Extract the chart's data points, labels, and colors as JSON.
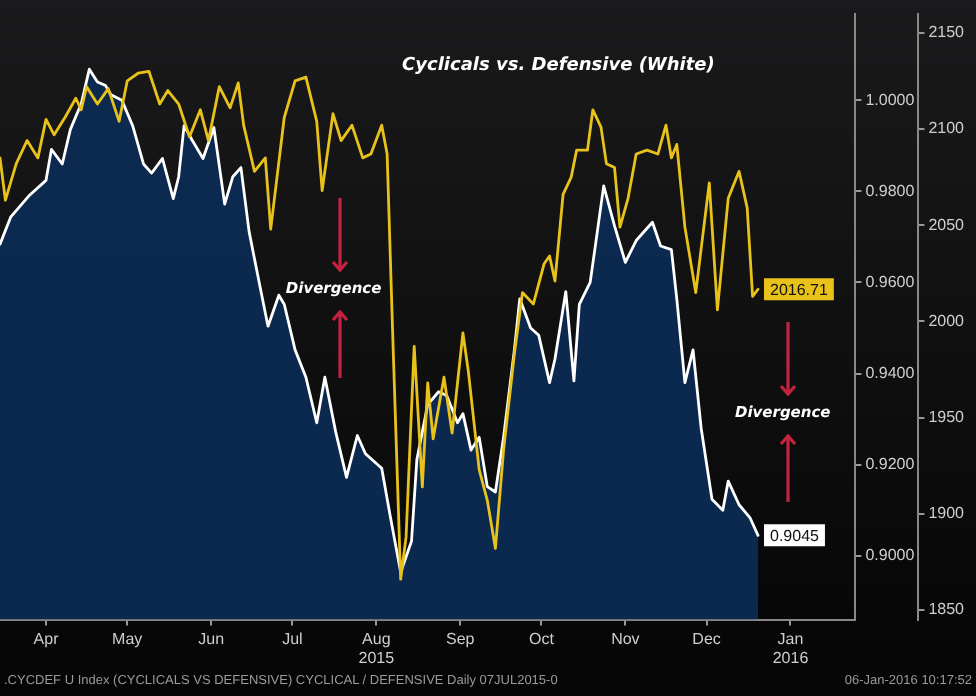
{
  "chart_data": {
    "type": "area",
    "title": "Cyclicals vs. Defensive (White)",
    "xlim": [
      "2015-03-29",
      "2016-02-08"
    ],
    "xticks": [
      {
        "value": "2015-04-15",
        "label": "Apr"
      },
      {
        "value": "2015-05-15",
        "label": "May"
      },
      {
        "value": "2015-06-15",
        "label": "Jun"
      },
      {
        "value": "2015-07-15",
        "label": "Jul"
      },
      {
        "value": "2015-08-15",
        "label": "Aug\n2015"
      },
      {
        "value": "2015-09-15",
        "label": "Sep"
      },
      {
        "value": "2015-10-15",
        "label": "Oct"
      },
      {
        "value": "2015-11-15",
        "label": "Nov"
      },
      {
        "value": "2015-12-15",
        "label": "Dec"
      },
      {
        "value": "2016-01-15",
        "label": "Jan\n2016"
      }
    ],
    "ylim": [
      0.886,
      1.019
    ],
    "yticks": [
      {
        "value": 0.9,
        "label": "0.9000"
      },
      {
        "value": 0.92,
        "label": "0.9200"
      },
      {
        "value": 0.94,
        "label": "0.9400"
      },
      {
        "value": 0.96,
        "label": "0.9600"
      },
      {
        "value": 0.98,
        "label": "0.9800"
      },
      {
        "value": 1.0,
        "label": "1.0000"
      }
    ],
    "y2lim": [
      1845,
      2160
    ],
    "y2ticks": [
      1850,
      1900,
      1950,
      2000,
      2050,
      2100,
      2150
    ],
    "grid": false,
    "legend": false,
    "series": [
      {
        "type": "area",
        "color": "#ffffff",
        "x": [
          "2015-03-29",
          "2015-04-02",
          "2015-04-09",
          "2015-04-15",
          "2015-04-17",
          "2015-04-21",
          "2015-04-24",
          "2015-04-28",
          "2015-05-01",
          "2015-05-04",
          "2015-05-07",
          "2015-05-09",
          "2015-05-13",
          "2015-05-17",
          "2015-05-21",
          "2015-05-24",
          "2015-05-28",
          "2015-06-01",
          "2015-06-03",
          "2015-06-05",
          "2015-06-08",
          "2015-06-12",
          "2015-06-16",
          "2015-06-20",
          "2015-06-23",
          "2015-06-26",
          "2015-06-29",
          "2015-07-03",
          "2015-07-06",
          "2015-07-10",
          "2015-07-12",
          "2015-07-16",
          "2015-07-20",
          "2015-07-24",
          "2015-07-27",
          "2015-07-31",
          "2015-08-04",
          "2015-08-08",
          "2015-08-11",
          "2015-08-17",
          "2015-08-20",
          "2015-08-24",
          "2015-08-28",
          "2015-08-30",
          "2015-09-03",
          "2015-09-07",
          "2015-09-10",
          "2015-09-14",
          "2015-09-16",
          "2015-09-19",
          "2015-09-22",
          "2015-09-25",
          "2015-09-28",
          "2015-10-01",
          "2015-10-05",
          "2015-10-07",
          "2015-10-11",
          "2015-10-14",
          "2015-10-18",
          "2015-10-20",
          "2015-10-24",
          "2015-10-27",
          "2015-10-29",
          "2015-11-02",
          "2015-11-04",
          "2015-11-07",
          "2015-11-11",
          "2015-11-15",
          "2015-11-19",
          "2015-11-25",
          "2015-11-28",
          "2015-12-02",
          "2015-12-04",
          "2015-12-07",
          "2015-12-10",
          "2015-12-13",
          "2015-12-17",
          "2015-12-21",
          "2015-12-23",
          "2015-12-27",
          "2015-12-31",
          "2016-01-03"
        ],
        "values": [
          0.9684,
          0.9744,
          0.9792,
          0.9824,
          0.9892,
          0.986,
          0.9936,
          0.9992,
          1.0068,
          1.004,
          1.0032,
          1.0012,
          1.0,
          0.9944,
          0.986,
          0.984,
          0.9872,
          0.9784,
          0.9832,
          0.9944,
          0.9912,
          0.9872,
          0.994,
          0.9772,
          0.9832,
          0.9852,
          0.9712,
          0.9592,
          0.9504,
          0.9572,
          0.9552,
          0.9452,
          0.9392,
          0.9292,
          0.9392,
          0.9272,
          0.9172,
          0.9264,
          0.9224,
          0.9192,
          0.9092,
          0.8964,
          0.9032,
          0.9212,
          0.9332,
          0.936,
          0.9352,
          0.9292,
          0.9312,
          0.9232,
          0.926,
          0.9152,
          0.914,
          0.926,
          0.9452,
          0.9564,
          0.95,
          0.9484,
          0.938,
          0.9432,
          0.958,
          0.9384,
          0.9552,
          0.96,
          0.9684,
          0.9812,
          0.9724,
          0.9644,
          0.9692,
          0.9732,
          0.968,
          0.9672,
          0.9564,
          0.938,
          0.9452,
          0.928,
          0.9124,
          0.91,
          0.9164,
          0.9112,
          0.9084,
          0.9045
        ],
        "value_labels": [
          null,
          null,
          null,
          null,
          null,
          null,
          null,
          null,
          null,
          null,
          null,
          null,
          null,
          null,
          null,
          null,
          null,
          null,
          null,
          null,
          null,
          null,
          null,
          null,
          null,
          null,
          null,
          null,
          null,
          null,
          null,
          null,
          null,
          null,
          null,
          null,
          null,
          null,
          null,
          null,
          null,
          null,
          null,
          null,
          null,
          null,
          null,
          null,
          null,
          null,
          null,
          null,
          null,
          null,
          null,
          null,
          null,
          null,
          null,
          null,
          null,
          null,
          null,
          null,
          null,
          null,
          null,
          null,
          null,
          null,
          null,
          null,
          null,
          null,
          null,
          null,
          null,
          null,
          null,
          null,
          null,
          "0.9045"
        ]
      },
      {
        "type": "line",
        "color": "#e8c21a",
        "axis": "y2",
        "x": [
          "2015-03-29",
          "2015-03-31",
          "2015-04-04",
          "2015-04-08",
          "2015-04-12",
          "2015-04-15",
          "2015-04-18",
          "2015-04-22",
          "2015-04-26",
          "2015-04-28",
          "2015-04-30",
          "2015-05-04",
          "2015-05-08",
          "2015-05-12",
          "2015-05-15",
          "2015-05-19",
          "2015-05-23",
          "2015-05-27",
          "2015-05-30",
          "2015-06-03",
          "2015-06-07",
          "2015-06-11",
          "2015-06-14",
          "2015-06-18",
          "2015-06-22",
          "2015-06-25",
          "2015-06-27",
          "2015-07-01",
          "2015-07-05",
          "2015-07-07",
          "2015-07-12",
          "2015-07-16",
          "2015-07-20",
          "2015-07-24",
          "2015-07-26",
          "2015-07-30",
          "2015-08-02",
          "2015-08-06",
          "2015-08-10",
          "2015-08-13",
          "2015-08-17",
          "2015-08-19",
          "2015-08-21",
          "2015-08-24",
          "2015-08-26",
          "2015-08-29",
          "2015-09-01",
          "2015-09-03",
          "2015-09-05",
          "2015-09-09",
          "2015-09-12",
          "2015-09-16",
          "2015-09-18",
          "2015-09-22",
          "2015-09-25",
          "2015-09-28",
          "2015-10-01",
          "2015-10-05",
          "2015-10-08",
          "2015-10-12",
          "2015-10-16",
          "2015-10-18",
          "2015-10-20",
          "2015-10-23",
          "2015-10-26",
          "2015-10-28",
          "2015-11-01",
          "2015-11-03",
          "2015-11-06",
          "2015-11-08",
          "2015-11-11",
          "2015-11-13",
          "2015-11-16",
          "2015-11-19",
          "2015-11-23",
          "2015-11-27",
          "2015-11-30",
          "2015-12-02",
          "2015-12-04",
          "2015-12-07",
          "2015-12-11",
          "2015-12-16",
          "2015-12-19",
          "2015-12-23",
          "2015-12-27",
          "2015-12-30",
          "2016-01-01",
          "2016-01-03"
        ],
        "values": [
          2085,
          2063,
          2082,
          2094,
          2085,
          2105,
          2097,
          2106,
          2116,
          2110,
          2122,
          2113,
          2121,
          2104,
          2125,
          2129,
          2130,
          2113,
          2120,
          2113,
          2096,
          2110,
          2094,
          2122,
          2111,
          2124,
          2102,
          2078,
          2085,
          2048,
          2106,
          2125,
          2127,
          2104,
          2068,
          2108,
          2094,
          2102,
          2085,
          2087,
          2102,
          2087,
          1996,
          1866,
          1888,
          1987,
          1914,
          1968,
          1939,
          1971,
          1942,
          1994,
          1974,
          1923,
          1907,
          1882,
          1933,
          1983,
          2015,
          2009,
          2030,
          2034,
          2021,
          2066,
          2075,
          2089,
          2089,
          2110,
          2101,
          2082,
          2080,
          2049,
          2064,
          2087,
          2089,
          2087,
          2102,
          2085,
          2092,
          2049,
          2015,
          2072,
          2006,
          2064,
          2078,
          2059,
          2013,
          2016.71
        ],
        "value_labels": [
          null,
          null,
          null,
          null,
          null,
          null,
          null,
          null,
          null,
          null,
          null,
          null,
          null,
          null,
          null,
          null,
          null,
          null,
          null,
          null,
          null,
          null,
          null,
          null,
          null,
          null,
          null,
          null,
          null,
          null,
          null,
          null,
          null,
          null,
          null,
          null,
          null,
          null,
          null,
          null,
          null,
          null,
          null,
          null,
          null,
          null,
          null,
          null,
          null,
          null,
          null,
          null,
          null,
          null,
          null,
          null,
          null,
          null,
          null,
          null,
          null,
          null,
          null,
          null,
          null,
          null,
          null,
          null,
          null,
          null,
          null,
          null,
          null,
          null,
          null,
          null,
          null,
          null,
          null,
          null,
          null,
          null,
          null,
          null,
          null,
          null,
          null,
          "2016.71"
        ]
      }
    ],
    "annotations": [
      "Divergence",
      "Divergence",
      ".CYCDEF U Index (CYCLICALS VS DEFENSIVE) CYCLICAL / DEFENSIVE  Daily 07JUL2015-0",
      "06-Jan-2016 10:17:52"
    ]
  }
}
